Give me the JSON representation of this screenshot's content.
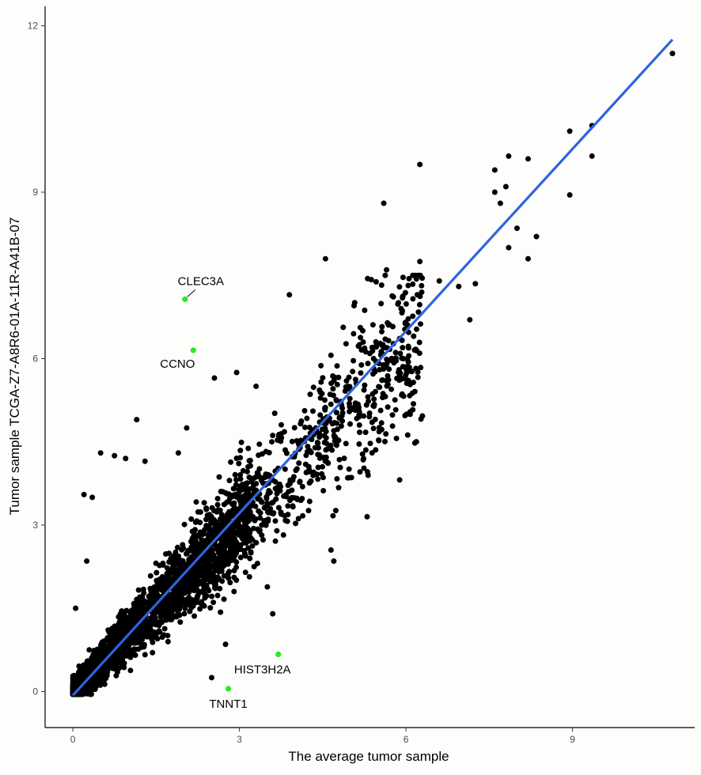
{
  "chart_data": {
    "type": "scatter",
    "xlabel": "The average tumor sample",
    "ylabel": "Tumor sample TCGA-Z7-A8R6-01A-11R-A41B-07",
    "xlim": [
      -0.5,
      11.2
    ],
    "ylim": [
      -0.65,
      12.35
    ],
    "x_ticks": [
      0,
      3,
      6,
      9
    ],
    "y_ticks": [
      0,
      3,
      6,
      9,
      12
    ],
    "x_tick_labels": [
      "0",
      "3",
      "6",
      "9"
    ],
    "y_tick_labels": [
      "0",
      "3",
      "6",
      "9",
      "12"
    ],
    "grid": false,
    "legend": "none",
    "point_color": "#000000",
    "highlight_color": "#22ee22",
    "fit_line": {
      "color": "#2f63e0",
      "x": [
        0,
        10.8
      ],
      "y": [
        -0.07,
        11.75
      ]
    },
    "highlighted_points": [
      {
        "label": "CLEC3A",
        "x": 2.02,
        "y": 7.07
      },
      {
        "label": "CCNO",
        "x": 2.17,
        "y": 6.15
      },
      {
        "label": "HIST3H2A",
        "x": 3.7,
        "y": 0.67
      },
      {
        "label": "TNNT1",
        "x": 2.8,
        "y": 0.05
      }
    ],
    "outlier_points": [
      {
        "x": 10.8,
        "y": 11.5
      },
      {
        "x": 9.35,
        "y": 10.2
      },
      {
        "x": 8.95,
        "y": 10.1
      },
      {
        "x": 9.35,
        "y": 9.65
      },
      {
        "x": 8.95,
        "y": 8.95
      },
      {
        "x": 6.25,
        "y": 9.5
      },
      {
        "x": 7.85,
        "y": 9.65
      },
      {
        "x": 8.2,
        "y": 9.6
      },
      {
        "x": 7.6,
        "y": 9.4
      },
      {
        "x": 7.8,
        "y": 9.1
      },
      {
        "x": 7.6,
        "y": 9.0
      },
      {
        "x": 7.7,
        "y": 8.8
      },
      {
        "x": 8.0,
        "y": 8.35
      },
      {
        "x": 8.35,
        "y": 8.2
      },
      {
        "x": 7.85,
        "y": 8.0
      },
      {
        "x": 8.2,
        "y": 7.8
      },
      {
        "x": 5.6,
        "y": 8.8
      },
      {
        "x": 4.55,
        "y": 7.8
      },
      {
        "x": 3.9,
        "y": 7.15
      },
      {
        "x": 5.65,
        "y": 7.6
      },
      {
        "x": 6.25,
        "y": 7.75
      },
      {
        "x": 6.6,
        "y": 7.4
      },
      {
        "x": 6.95,
        "y": 7.3
      },
      {
        "x": 7.25,
        "y": 7.35
      },
      {
        "x": 7.15,
        "y": 6.7
      },
      {
        "x": 6.05,
        "y": 6.05
      },
      {
        "x": 4.7,
        "y": 4.7
      },
      {
        "x": 1.15,
        "y": 4.9
      },
      {
        "x": 0.5,
        "y": 4.3
      },
      {
        "x": 1.3,
        "y": 4.15
      },
      {
        "x": 0.95,
        "y": 4.2
      },
      {
        "x": 0.75,
        "y": 4.25
      },
      {
        "x": 0.2,
        "y": 3.55
      },
      {
        "x": 0.35,
        "y": 3.5
      },
      {
        "x": 0.25,
        "y": 2.35
      },
      {
        "x": 0.05,
        "y": 1.5
      },
      {
        "x": 4.7,
        "y": 2.35
      },
      {
        "x": 4.65,
        "y": 2.55
      },
      {
        "x": 5.3,
        "y": 3.15
      },
      {
        "x": 4.95,
        "y": 3.85
      },
      {
        "x": 2.5,
        "y": 0.25
      },
      {
        "x": 3.6,
        "y": 1.4
      },
      {
        "x": 2.75,
        "y": 0.85
      },
      {
        "x": 2.95,
        "y": 5.75
      },
      {
        "x": 2.55,
        "y": 5.65
      },
      {
        "x": 2.05,
        "y": 4.75
      },
      {
        "x": 3.3,
        "y": 5.5
      },
      {
        "x": 1.9,
        "y": 4.3
      }
    ],
    "main_cloud_series": {
      "name": "",
      "description_values": "dense cloud of genes along the diagonal from (0,0) to about (6,6)",
      "count": 3500,
      "x_range": [
        0,
        6.5
      ],
      "y_range": [
        -0.05,
        7.5
      ]
    }
  }
}
